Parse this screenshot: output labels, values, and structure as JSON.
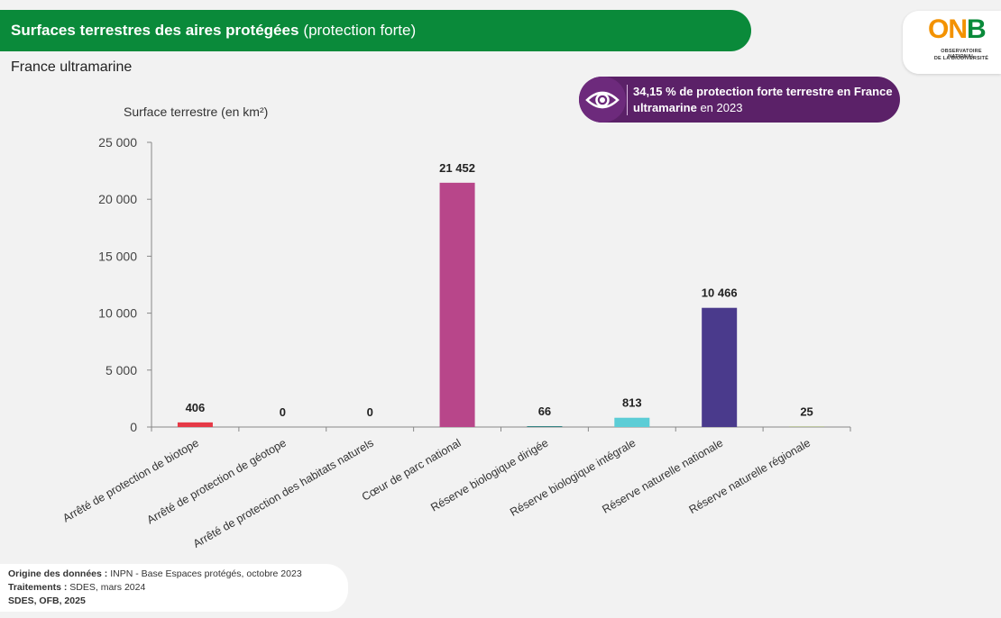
{
  "header": {
    "title_bold": "Surfaces terrestres des aires protégées",
    "title_rest": "(protection forte)",
    "subtitle": "France ultramarine"
  },
  "logo": {
    "word_o": "O",
    "word_n": "N",
    "word_b": "B",
    "line1": "OBSERVATOIRE NATIONAL",
    "line2": "DE LA BIODIVERSITÉ"
  },
  "callout": {
    "bold_text": "34,15 % de protection forte terrestre en France ultramarine",
    "rest_text": "en",
    "year": "2023",
    "icon": "eye-icon"
  },
  "sources": {
    "origin_label": "Origine des données :",
    "origin_value": "INPN  - Base Espaces protégés, octobre 2023",
    "processing_label": "Traitements :",
    "processing_value": "SDES, mars 2024",
    "credit": "SDES, OFB, 2025"
  },
  "chart_data": {
    "type": "bar",
    "ylabel": "Surface terrestre (en km²)",
    "xlabel": "",
    "ylim": [
      0,
      25000
    ],
    "yticks": [
      0,
      5000,
      10000,
      15000,
      20000,
      25000
    ],
    "ytick_labels": [
      "0",
      "5 000",
      "10 000",
      "15 000",
      "20 000",
      "25 000"
    ],
    "grid": false,
    "categories": [
      "Arrêté de protection de biotope",
      "Arrêté de protection de géotope",
      "Arrêté de protection des habitats naturels",
      "Cœur de parc national",
      "Réserve biologique dirigée",
      "Réserve biologique intégrale",
      "Réserve naturelle nationale",
      "Réserve naturelle régionale"
    ],
    "values": [
      406,
      0,
      0,
      21452,
      66,
      813,
      10466,
      25
    ],
    "data_labels": [
      "406",
      "0",
      "0",
      "21 452",
      "66",
      "813",
      "10 466",
      "25"
    ],
    "colors": [
      "#e63946",
      "#888888",
      "#888888",
      "#b8468a",
      "#0f6e6e",
      "#5ccdd6",
      "#4a3a8c",
      "#8fa832"
    ]
  }
}
